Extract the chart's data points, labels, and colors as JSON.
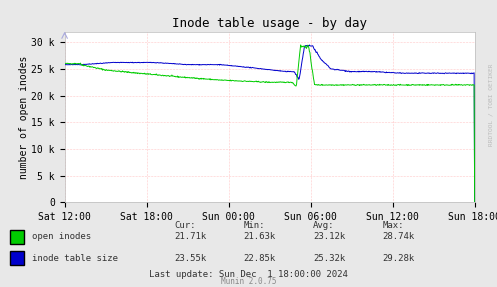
{
  "title": "Inode table usage - by day",
  "ylabel": "number of open inodes",
  "background_color": "#e8e8e8",
  "plot_bg_color": "#ffffff",
  "grid_color": "#ff9999",
  "title_fontsize": 9,
  "axis_fontsize": 7,
  "tick_fontsize": 7,
  "ylim": [
    0,
    32000
  ],
  "yticks": [
    0,
    5000,
    10000,
    15000,
    20000,
    25000,
    30000
  ],
  "ytick_labels": [
    "0",
    "5 k",
    "10 k",
    "15 k",
    "20 k",
    "25 k",
    "30 k"
  ],
  "xtick_labels": [
    "Sat 12:00",
    "Sat 18:00",
    "Sun 00:00",
    "Sun 06:00",
    "Sun 12:00",
    "Sun 18:00"
  ],
  "legend_entries": [
    "open inodes",
    "inode table size"
  ],
  "legend_colors": [
    "#00cc00",
    "#0000cc"
  ],
  "stats_headers": [
    "Cur:",
    "Min:",
    "Avg:",
    "Max:"
  ],
  "stats_open_inodes": [
    "21.71k",
    "21.63k",
    "23.12k",
    "28.74k"
  ],
  "stats_inode_table": [
    "23.55k",
    "22.85k",
    "25.32k",
    "29.28k"
  ],
  "last_update": "Last update: Sun Dec  1 18:00:00 2024",
  "munin_version": "Munin 2.0.75",
  "watermark": "RRDTOOL / TOBI OETIKER",
  "open_inodes_color": "#00cc00",
  "inode_table_color": "#0000cc"
}
